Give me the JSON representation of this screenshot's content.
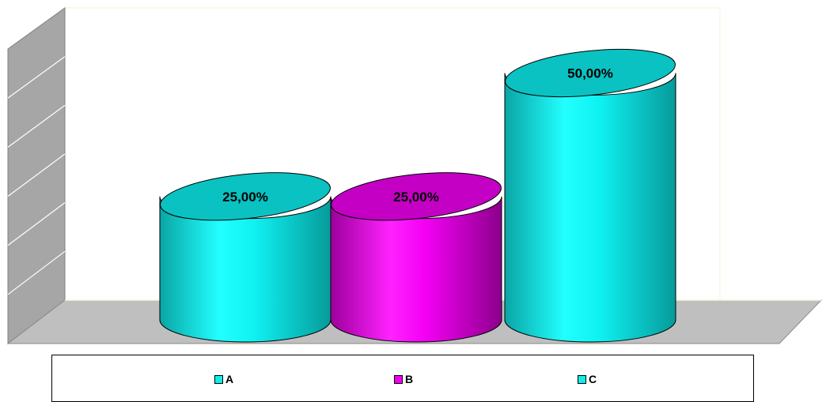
{
  "chart_data": {
    "type": "bar",
    "categories": [
      "A",
      "B",
      "C"
    ],
    "values": [
      25,
      25,
      50
    ],
    "data_labels": [
      "25,00%",
      "25,00%",
      "50,00%"
    ],
    "ylim": [
      0,
      60
    ],
    "grid": true,
    "legend_position": "bottom",
    "colors": [
      "#11eded",
      "#f000f0",
      "#11eded"
    ]
  },
  "legend": {
    "items": [
      {
        "label": "A",
        "color": "#11eded"
      },
      {
        "label": "B",
        "color": "#f000f0"
      },
      {
        "label": "C",
        "color": "#11eded"
      }
    ]
  }
}
